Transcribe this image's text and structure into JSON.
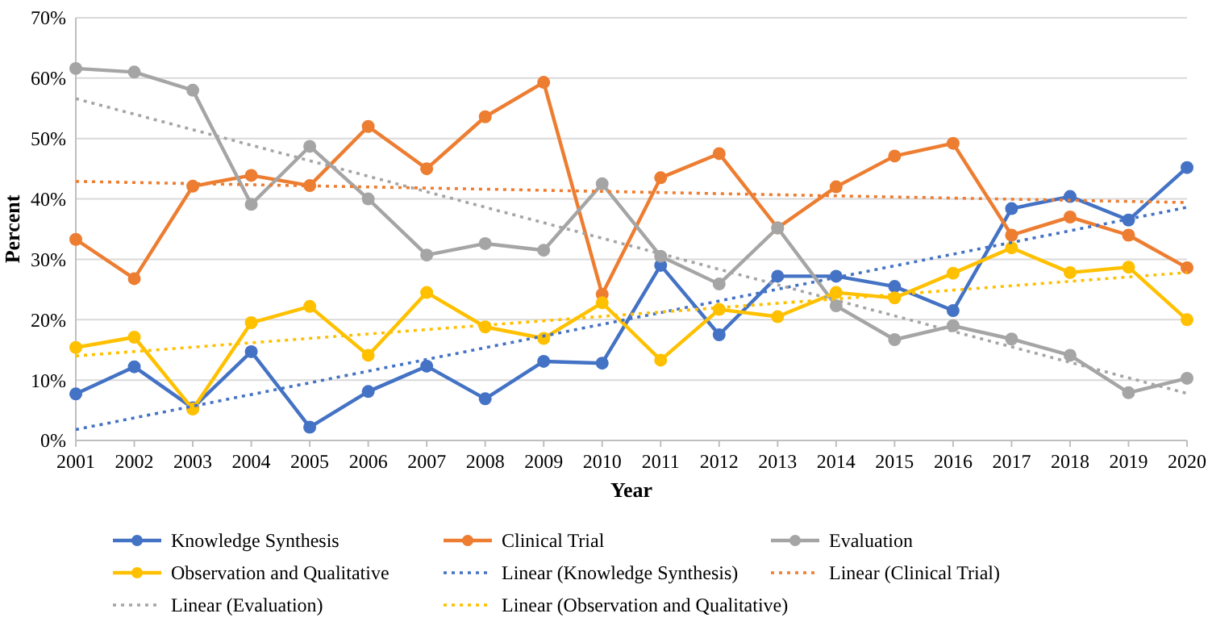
{
  "chart_data": {
    "type": "line",
    "xlabel": "Year",
    "ylabel": "Percent",
    "x": [
      2001,
      2002,
      2003,
      2004,
      2005,
      2006,
      2007,
      2008,
      2009,
      2010,
      2011,
      2012,
      2013,
      2014,
      2015,
      2016,
      2017,
      2018,
      2019,
      2020
    ],
    "xlim": [
      2001,
      2020
    ],
    "xticks": [
      2001,
      2002,
      2003,
      2004,
      2005,
      2006,
      2007,
      2008,
      2009,
      2010,
      2011,
      2012,
      2013,
      2014,
      2015,
      2016,
      2017,
      2018,
      2019,
      2020
    ],
    "ylim": [
      0,
      70
    ],
    "yticks": [
      {
        "value": 0,
        "label": "0%"
      },
      {
        "value": 10,
        "label": "10%"
      },
      {
        "value": 20,
        "label": "20%"
      },
      {
        "value": 30,
        "label": "30%"
      },
      {
        "value": 40,
        "label": "40%"
      },
      {
        "value": 50,
        "label": "50%"
      },
      {
        "value": 60,
        "label": "60%"
      },
      {
        "value": 70,
        "label": "70%"
      }
    ],
    "grid": "y",
    "legend": "bottom",
    "marker": "circle",
    "line_style": "solid",
    "series": [
      {
        "name": "Knowledge Synthesis",
        "color": "#4472c4",
        "values": [
          7.7,
          12.2,
          5.4,
          14.7,
          2.2,
          8.1,
          12.3,
          6.9,
          13.1,
          12.8,
          29,
          17.5,
          27.2,
          27.2,
          25.5,
          21.5,
          38.4,
          40.4,
          36.5,
          45.2
        ]
      },
      {
        "name": "Clinical Trial",
        "color": "#ed7d31",
        "values": [
          33.3,
          26.8,
          42.1,
          43.9,
          42.2,
          52,
          45,
          53.6,
          59.3,
          24.2,
          43.5,
          47.5,
          35.2,
          42,
          47.1,
          49.2,
          34,
          37,
          34,
          28.6
        ]
      },
      {
        "name": "Evaluation",
        "color": "#a5a5a5",
        "values": [
          61.6,
          61,
          58,
          39.1,
          48.7,
          40,
          30.7,
          32.6,
          31.5,
          42.5,
          30.5,
          25.9,
          35.2,
          22.3,
          16.7,
          19,
          16.8,
          14.1,
          7.9,
          10.3
        ]
      },
      {
        "name": "Observation and Qualitative",
        "color": "#ffc000",
        "values": [
          15.4,
          17.1,
          5.2,
          19.5,
          22.2,
          14.1,
          24.5,
          18.8,
          16.9,
          22.8,
          13.3,
          21.7,
          20.5,
          24.5,
          23.6,
          27.7,
          31.9,
          27.8,
          28.7,
          20
        ]
      },
      {
        "name": "Linear (Knowledge Synthesis)",
        "color": "#4472c4",
        "values": [
          1.8,
          null,
          null,
          null,
          null,
          null,
          null,
          null,
          null,
          null,
          null,
          null,
          null,
          null,
          null,
          null,
          null,
          null,
          null,
          38.6
        ],
        "marker": "none",
        "line_style": "dotted"
      },
      {
        "name": "Linear (Clinical Trial)",
        "color": "#ed7d31",
        "values": [
          42.9,
          null,
          null,
          null,
          null,
          null,
          null,
          null,
          null,
          null,
          null,
          null,
          null,
          null,
          null,
          null,
          null,
          null,
          null,
          39.4
        ],
        "marker": "none",
        "line_style": "dotted"
      },
      {
        "name": "Linear (Evaluation)",
        "color": "#a5a5a5",
        "values": [
          56.6,
          null,
          null,
          null,
          null,
          null,
          null,
          null,
          null,
          null,
          null,
          null,
          null,
          null,
          null,
          null,
          null,
          null,
          null,
          7.8
        ],
        "marker": "none",
        "line_style": "dotted"
      },
      {
        "name": "Linear (Observation and Qualitative)",
        "color": "#ffc000",
        "values": [
          14,
          null,
          null,
          null,
          null,
          null,
          null,
          null,
          null,
          null,
          null,
          null,
          null,
          null,
          null,
          null,
          null,
          null,
          null,
          27.8
        ],
        "marker": "none",
        "line_style": "dotted"
      }
    ]
  }
}
